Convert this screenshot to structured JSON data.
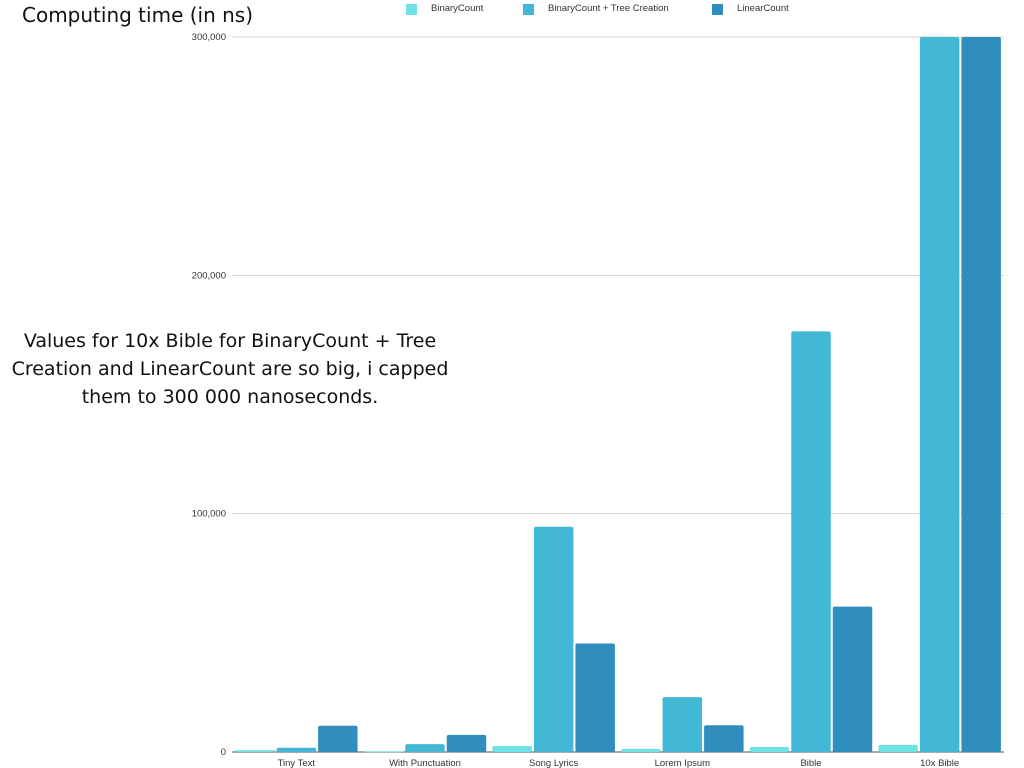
{
  "chart_data": {
    "type": "bar",
    "title": "Computing time (in ns)",
    "annotation": "Values for 10x Bible for BinaryCount + Tree Creation and LinearCount are so big, i capped them to 300 000 nanoseconds.",
    "categories": [
      "Tiny Text",
      "With Punctuation",
      "Song Lyrics",
      "Lorem Ipsum",
      "Bible",
      "10x Bible"
    ],
    "series": [
      {
        "name": "BinaryCount",
        "color": "#6fe2e8",
        "values": [
          800,
          300,
          2500,
          1300,
          2100,
          3000
        ]
      },
      {
        "name": "BinaryCount + Tree Creation",
        "color": "#42b8d6",
        "values": [
          1800,
          3300,
          94500,
          23000,
          176500,
          300000
        ]
      },
      {
        "name": "LinearCount",
        "color": "#2f8ebd",
        "values": [
          11000,
          7200,
          45500,
          11200,
          61000,
          300000
        ]
      }
    ],
    "ylim": [
      0,
      300000
    ],
    "yticks": [
      0,
      100000,
      200000,
      300000
    ],
    "ytick_labels": [
      "0",
      "100,000",
      "200,000",
      "300,000"
    ],
    "grid": true,
    "legend_position": "top"
  }
}
